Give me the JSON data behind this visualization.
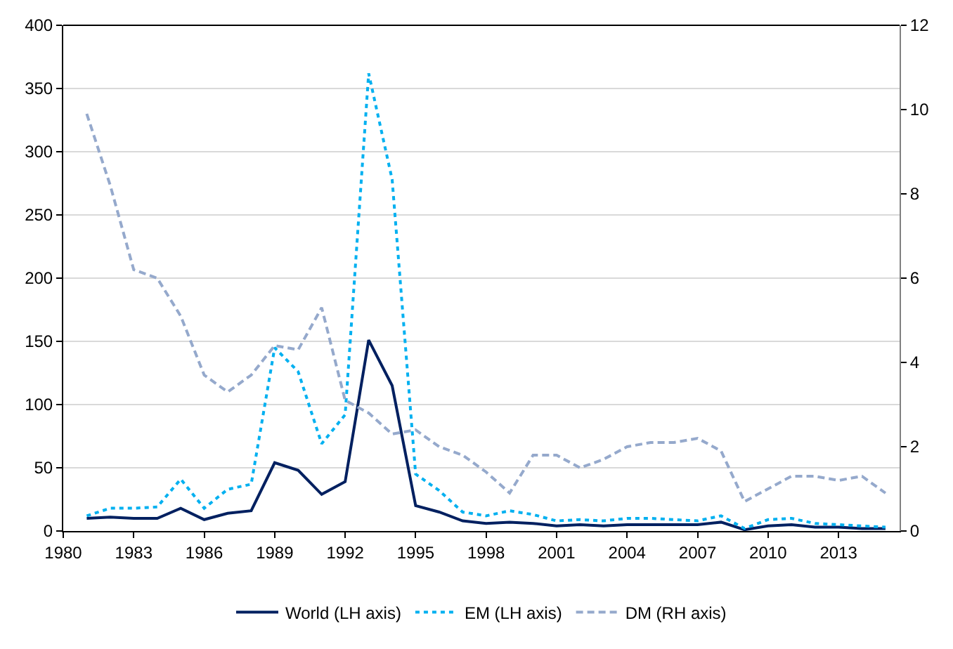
{
  "chart_data": {
    "type": "line",
    "x": [
      1981,
      1982,
      1983,
      1984,
      1985,
      1986,
      1987,
      1988,
      1989,
      1990,
      1991,
      1992,
      1993,
      1994,
      1995,
      1996,
      1997,
      1998,
      1999,
      2000,
      2001,
      2002,
      2003,
      2004,
      2005,
      2006,
      2007,
      2008,
      2009,
      2010,
      2011,
      2012,
      2013,
      2014,
      2015
    ],
    "series": [
      {
        "name": "World (LH axis)",
        "color": "#002060",
        "line_style": "solid",
        "values": [
          10,
          11,
          10,
          10,
          18,
          9,
          14,
          16,
          54,
          48,
          29,
          39,
          151,
          115,
          20,
          15,
          8,
          6,
          7,
          6,
          4,
          5,
          4,
          5,
          5,
          5,
          5,
          7,
          1,
          4,
          5,
          3,
          3,
          2,
          2
        ]
      },
      {
        "name": "EM (LH axis)",
        "color": "#00b0f0",
        "line_style": "dotted",
        "values": [
          12,
          18,
          18,
          19,
          41,
          18,
          33,
          37,
          145,
          126,
          69,
          92,
          362,
          278,
          45,
          32,
          15,
          12,
          16,
          13,
          8,
          9,
          8,
          10,
          10,
          9,
          8,
          12,
          2,
          9,
          10,
          6,
          5,
          4,
          3
        ]
      },
      {
        "name": "DM (RH axis)",
        "color": "#95a9cc",
        "line_style": "dashed",
        "axis": "y2",
        "values": [
          9.9,
          8.2,
          6.2,
          6.0,
          5.1,
          3.7,
          3.3,
          3.7,
          4.4,
          4.3,
          5.3,
          3.1,
          2.8,
          2.3,
          2.4,
          2.0,
          1.8,
          1.4,
          0.9,
          1.8,
          1.8,
          1.5,
          1.7,
          2.0,
          2.1,
          2.1,
          2.2,
          1.9,
          0.7,
          1.0,
          1.3,
          1.3,
          1.2,
          1.3,
          0.9
        ]
      }
    ],
    "xlim": [
      1980,
      2015.6
    ],
    "xticks": [
      1980,
      1983,
      1986,
      1989,
      1992,
      1995,
      1998,
      2001,
      2004,
      2007,
      2010,
      2013
    ],
    "ylim": [
      0,
      400
    ],
    "yticks": [
      0,
      50,
      100,
      150,
      200,
      250,
      300,
      350,
      400
    ],
    "y2lim": [
      0,
      12
    ],
    "y2ticks": [
      0,
      2,
      4,
      6,
      8,
      10,
      12
    ],
    "grid": "y",
    "legend": "bottom",
    "marker": "none"
  }
}
